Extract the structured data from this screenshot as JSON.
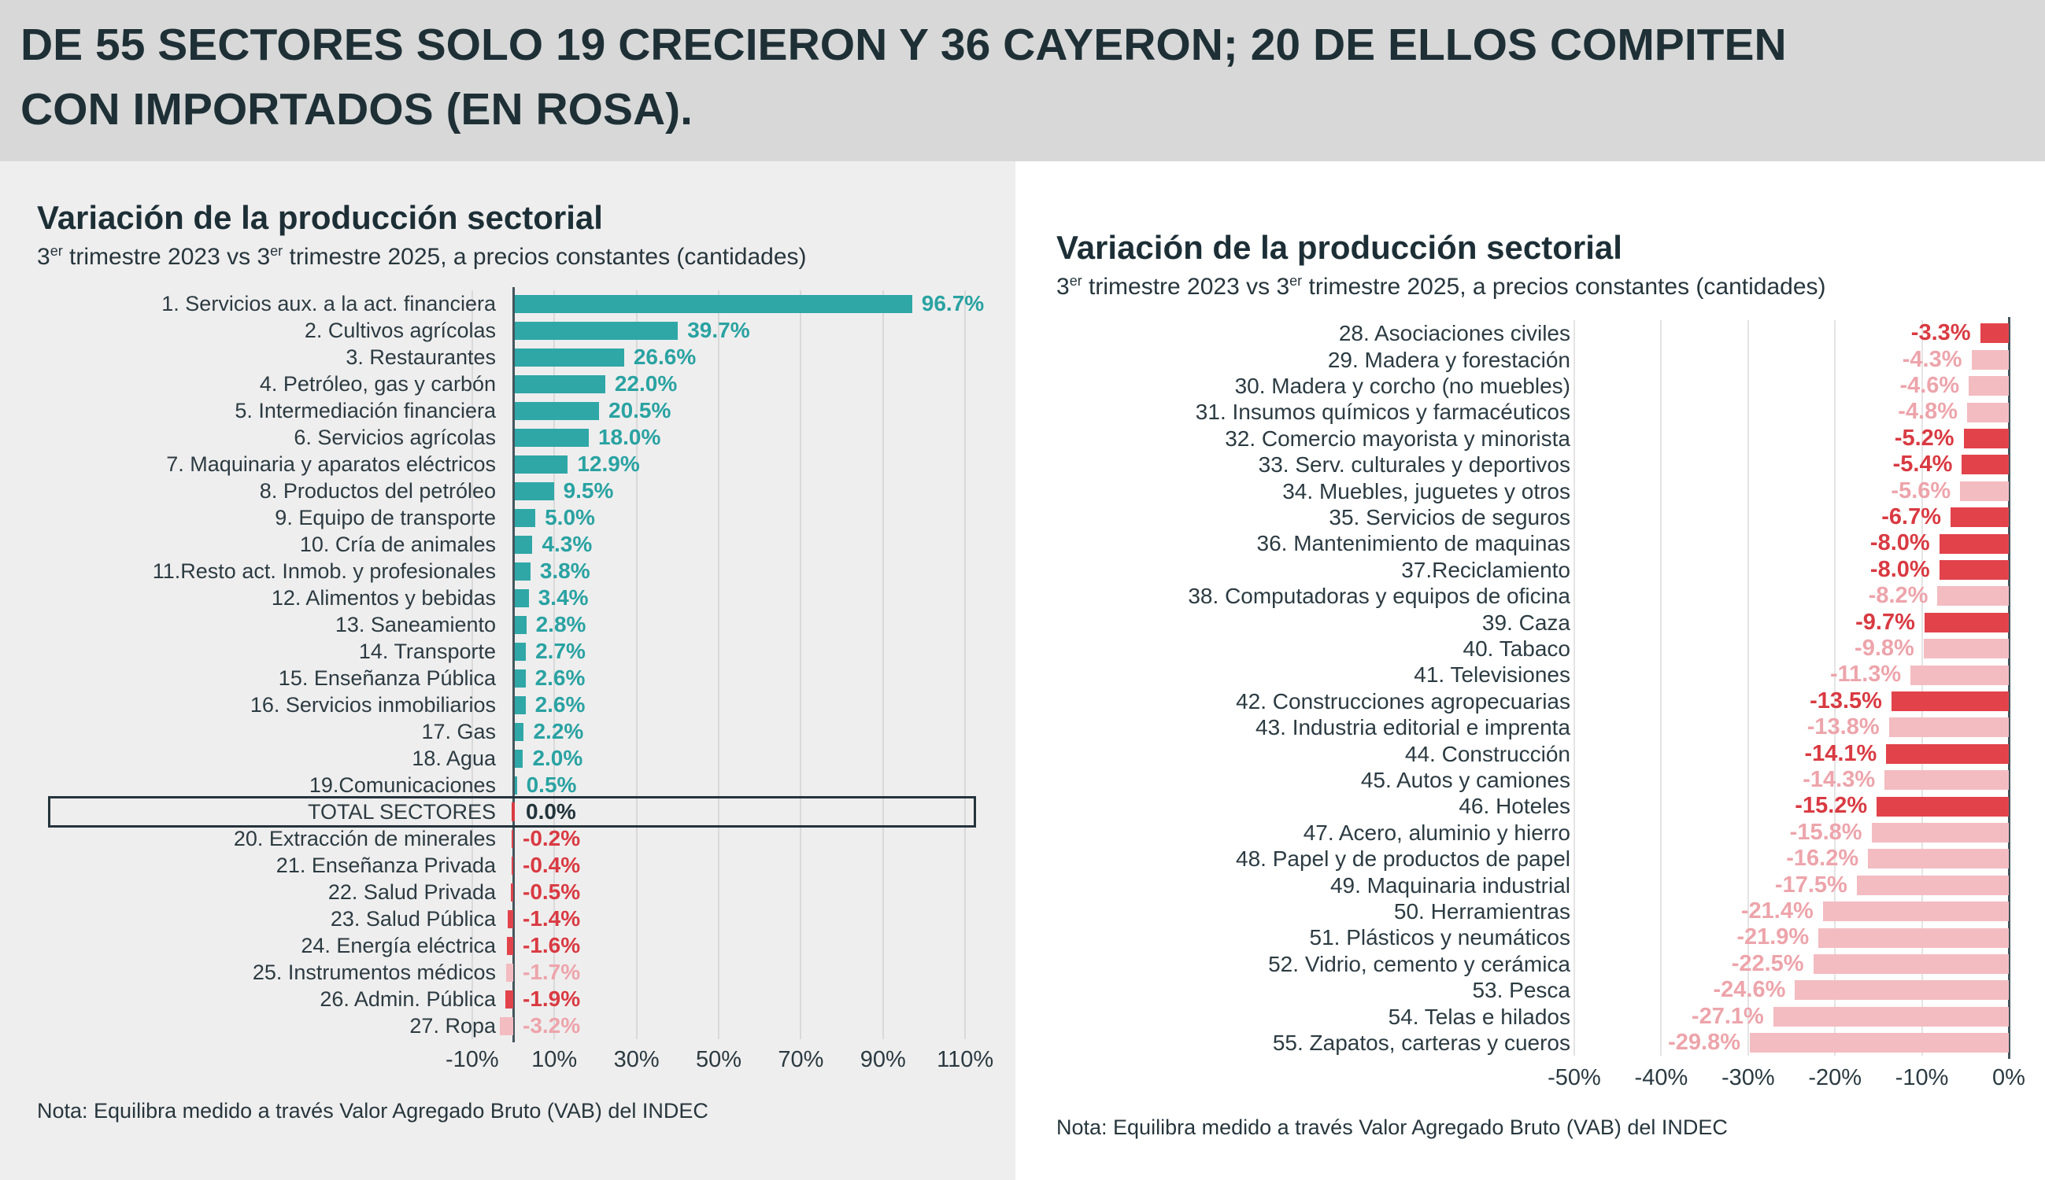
{
  "banner": {
    "lines": [
      "DE 55 SECTORES SOLO 19 CRECIERON Y 36 CAYERON; 20 DE ELLOS COMPITEN",
      "CON IMPORTADOS (EN ROSA)."
    ]
  },
  "colors": {
    "teal_bar": "#2fa7a7",
    "teal_text": "#2aa2a2",
    "red_bar": "#e2434b",
    "red_text": "#d93a42",
    "pink_bar": "#f3bcc1",
    "pink_text": "#eda4ab",
    "total_text": "#22343b",
    "dark": "#1d2f36",
    "marker": "#d93a42"
  },
  "chart_data": [
    {
      "type": "bar",
      "orientation": "horizontal",
      "title": "Variación de la producción sectorial",
      "subtitle_segments": [
        "3",
        "er",
        " trimestre 2023 vs 3",
        "er",
        " trimestre 2025, a precios constantes (cantidades)"
      ],
      "note": "Nota: Equilibra medido a través Valor Agregado Bruto (VAB) del INDEC",
      "unit": "%",
      "xlim": [
        -12,
        116
      ],
      "grid": true,
      "legend": false,
      "ticks": [
        {
          "v": -10,
          "label": "-10%"
        },
        {
          "v": 10,
          "label": "10%"
        },
        {
          "v": 30,
          "label": "30%"
        },
        {
          "v": 50,
          "label": "50%"
        },
        {
          "v": 70,
          "label": "70%"
        },
        {
          "v": 90,
          "label": "90%"
        },
        {
          "v": 110,
          "label": "110%"
        }
      ],
      "rows": [
        {
          "label": "1. Servicios aux. a la act. financiera",
          "value": 96.7,
          "display": "96.7%",
          "color": "teal"
        },
        {
          "label": "2. Cultivos agrícolas",
          "value": 39.7,
          "display": "39.7%",
          "color": "teal"
        },
        {
          "label": "3. Restaurantes",
          "value": 26.6,
          "display": "26.6%",
          "color": "teal"
        },
        {
          "label": "4. Petróleo, gas y carbón",
          "value": 22.0,
          "display": "22.0%",
          "color": "teal"
        },
        {
          "label": "5. Intermediación financiera",
          "value": 20.5,
          "display": "20.5%",
          "color": "teal"
        },
        {
          "label": "6. Servicios agrícolas",
          "value": 18.0,
          "display": "18.0%",
          "color": "teal"
        },
        {
          "label": "7. Maquinaria y aparatos eléctricos",
          "value": 12.9,
          "display": "12.9%",
          "color": "teal"
        },
        {
          "label": "8. Productos del petróleo",
          "value": 9.5,
          "display": "9.5%",
          "color": "teal"
        },
        {
          "label": "9. Equipo de transporte",
          "value": 5.0,
          "display": "5.0%",
          "color": "teal"
        },
        {
          "label": "10. Cría de animales",
          "value": 4.3,
          "display": "4.3%",
          "color": "teal"
        },
        {
          "label": "11.Resto act. Inmob. y profesionales",
          "value": 3.8,
          "display": "3.8%",
          "color": "teal"
        },
        {
          "label": "12. Alimentos y bebidas",
          "value": 3.4,
          "display": "3.4%",
          "color": "teal"
        },
        {
          "label": "13. Saneamiento",
          "value": 2.8,
          "display": "2.8%",
          "color": "teal"
        },
        {
          "label": "14. Transporte",
          "value": 2.7,
          "display": "2.7%",
          "color": "teal"
        },
        {
          "label": "15. Enseñanza Pública",
          "value": 2.6,
          "display": "2.6%",
          "color": "teal"
        },
        {
          "label": "16. Servicios inmobiliarios",
          "value": 2.6,
          "display": "2.6%",
          "color": "teal"
        },
        {
          "label": "17. Gas",
          "value": 2.2,
          "display": "2.2%",
          "color": "teal"
        },
        {
          "label": "18. Agua",
          "value": 2.0,
          "display": "2.0%",
          "color": "teal"
        },
        {
          "label": "19.Comunicaciones",
          "value": 0.5,
          "display": "0.5%",
          "color": "teal"
        },
        {
          "label": "TOTAL SECTORES",
          "value": 0.0,
          "display": "0.0%",
          "color": "total",
          "boxed": true,
          "marker0": true
        },
        {
          "label": "20. Extracción de minerales",
          "value": -0.2,
          "display": "-0.2%",
          "color": "red"
        },
        {
          "label": "21. Enseñanza Privada",
          "value": -0.4,
          "display": "-0.4%",
          "color": "red"
        },
        {
          "label": "22. Salud Privada",
          "value": -0.5,
          "display": "-0.5%",
          "color": "red"
        },
        {
          "label": "23. Salud Pública",
          "value": -1.4,
          "display": "-1.4%",
          "color": "red"
        },
        {
          "label": "24. Energía eléctrica",
          "value": -1.6,
          "display": "-1.6%",
          "color": "red"
        },
        {
          "label": "25. Instrumentos médicos",
          "value": -1.7,
          "display": "-1.7%",
          "color": "pink"
        },
        {
          "label": "26. Admin. Pública",
          "value": -1.9,
          "display": "-1.9%",
          "color": "red"
        },
        {
          "label": "27. Ropa",
          "value": -3.2,
          "display": "-3.2%",
          "color": "pink"
        }
      ]
    },
    {
      "type": "bar",
      "orientation": "horizontal",
      "title": "Variación de la producción sectorial",
      "subtitle_segments": [
        "3",
        "er",
        " trimestre 2023 vs 3",
        "er",
        " trimestre 2025, a precios constantes (cantidades)"
      ],
      "note": "Nota: Equilibra medido a través Valor Agregado Bruto (VAB) del INDEC",
      "unit": "%",
      "xlim": [
        -53,
        0
      ],
      "grid": true,
      "legend": false,
      "ticks": [
        {
          "v": -50,
          "label": "-50%"
        },
        {
          "v": -40,
          "label": "-40%"
        },
        {
          "v": -30,
          "label": "-30%"
        },
        {
          "v": -20,
          "label": "-20%"
        },
        {
          "v": -10,
          "label": "-10%"
        },
        {
          "v": 0,
          "label": "0%"
        }
      ],
      "rows": [
        {
          "label": "28. Asociaciones civiles",
          "value": -3.3,
          "display": "-3.3%",
          "color": "red"
        },
        {
          "label": "29. Madera y forestación",
          "value": -4.3,
          "display": "-4.3%",
          "color": "pink"
        },
        {
          "label": "30. Madera y corcho (no muebles)",
          "value": -4.6,
          "display": "-4.6%",
          "color": "pink"
        },
        {
          "label": "31. Insumos químicos y farmacéuticos",
          "value": -4.8,
          "display": "-4.8%",
          "color": "pink"
        },
        {
          "label": "32. Comercio mayorista y minorista",
          "value": -5.2,
          "display": "-5.2%",
          "color": "red"
        },
        {
          "label": "33. Serv. culturales y deportivos",
          "value": -5.4,
          "display": "-5.4%",
          "color": "red"
        },
        {
          "label": "34. Muebles, juguetes y otros",
          "value": -5.6,
          "display": "-5.6%",
          "color": "pink"
        },
        {
          "label": "35. Servicios de seguros",
          "value": -6.7,
          "display": "-6.7%",
          "color": "red"
        },
        {
          "label": "36. Mantenimiento de maquinas",
          "value": -8.0,
          "display": "-8.0%",
          "color": "red"
        },
        {
          "label": "37.Reciclamiento",
          "value": -8.0,
          "display": "-8.0%",
          "color": "red"
        },
        {
          "label": "38. Computadoras y equipos de oficina",
          "value": -8.2,
          "display": "-8.2%",
          "color": "pink"
        },
        {
          "label": "39. Caza",
          "value": -9.7,
          "display": "-9.7%",
          "color": "red"
        },
        {
          "label": "40. Tabaco",
          "value": -9.8,
          "display": "-9.8%",
          "color": "pink"
        },
        {
          "label": "41. Televisiones",
          "value": -11.3,
          "display": "-11.3%",
          "color": "pink"
        },
        {
          "label": "42. Construcciones agropecuarias",
          "value": -13.5,
          "display": "-13.5%",
          "color": "red"
        },
        {
          "label": "43. Industria editorial e imprenta",
          "value": -13.8,
          "display": "-13.8%",
          "color": "pink"
        },
        {
          "label": "44. Construcción",
          "value": -14.1,
          "display": "-14.1%",
          "color": "red"
        },
        {
          "label": "45. Autos y camiones",
          "value": -14.3,
          "display": "-14.3%",
          "color": "pink"
        },
        {
          "label": "46. Hoteles",
          "value": -15.2,
          "display": "-15.2%",
          "color": "red"
        },
        {
          "label": "47. Acero, aluminio y hierro",
          "value": -15.8,
          "display": "-15.8%",
          "color": "pink"
        },
        {
          "label": "48. Papel y de productos de papel",
          "value": -16.2,
          "display": "-16.2%",
          "color": "pink"
        },
        {
          "label": "49. Maquinaria industrial",
          "value": -17.5,
          "display": "-17.5%",
          "color": "pink"
        },
        {
          "label": "50. Herramientras",
          "value": -21.4,
          "display": "-21.4%",
          "color": "pink"
        },
        {
          "label": "51. Plásticos y neumáticos",
          "value": -21.9,
          "display": "-21.9%",
          "color": "pink"
        },
        {
          "label": "52. Vidrio, cemento y cerámica",
          "value": -22.5,
          "display": "-22.5%",
          "color": "pink"
        },
        {
          "label": "53. Pesca",
          "value": -24.6,
          "display": "-24.6%",
          "color": "pink"
        },
        {
          "label": "54. Telas e hilados",
          "value": -27.1,
          "display": "-27.1%",
          "color": "pink"
        },
        {
          "label": "55. Zapatos, carteras y cueros",
          "value": -29.8,
          "display": "-29.8%",
          "color": "pink"
        }
      ]
    }
  ]
}
